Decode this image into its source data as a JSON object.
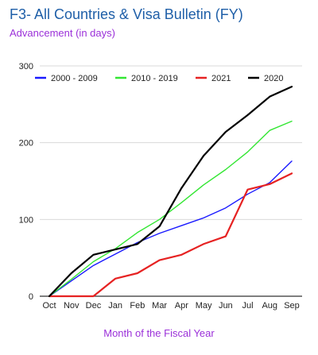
{
  "chart_data": {
    "type": "line",
    "title": "F3- All Countries & Visa Bulletin (FY)",
    "ylabel": "Advancement (in days)",
    "xlabel": "Month of the Fiscal Year",
    "categories": [
      "Oct",
      "Nov",
      "Dec",
      "Jan",
      "Feb",
      "Mar",
      "Apr",
      "May",
      "Jun",
      "Jul",
      "Aug",
      "Sep"
    ],
    "ylim": [
      0,
      300
    ],
    "yticks": [
      0,
      100,
      200,
      300
    ],
    "grid": true,
    "legend_position": "top",
    "series": [
      {
        "name": "2000 - 2009",
        "color": "#1a1aff",
        "values": [
          0,
          20,
          40,
          55,
          70,
          82,
          92,
          102,
          115,
          133,
          148,
          176
        ]
      },
      {
        "name": "2010 - 2019",
        "color": "#33e633",
        "values": [
          0,
          22,
          45,
          62,
          83,
          100,
          122,
          145,
          165,
          188,
          216,
          228
        ]
      },
      {
        "name": "2021",
        "color": "#e62222",
        "values": [
          0,
          0,
          0,
          23,
          30,
          47,
          54,
          68,
          78,
          139,
          146,
          160
        ]
      },
      {
        "name": "2020",
        "color": "#000000",
        "values": [
          0,
          30,
          54,
          61,
          68,
          91,
          141,
          183,
          214,
          236,
          260,
          273
        ]
      }
    ]
  }
}
